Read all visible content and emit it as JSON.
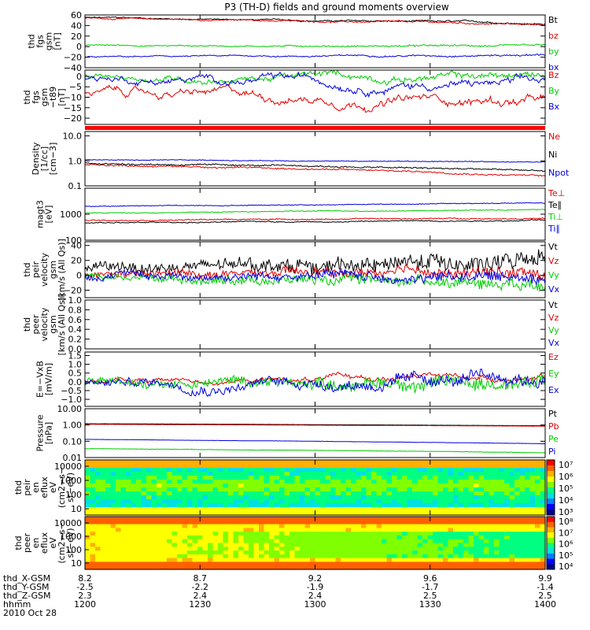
{
  "title": "P3 (TH-D) fields and ground moments overview",
  "chart_data": {
    "type": "line",
    "title": "P3 (TH-D) fields and ground moments overview",
    "x_axis": {
      "label": "hhmm",
      "date": "2010 Oct 28",
      "ticks": [
        "1200",
        "1230",
        "1300",
        "1330",
        "1400"
      ],
      "ephemeris": [
        {
          "name": "thd_X-GSM",
          "values": [
            "8.2",
            "8.7",
            "9.2",
            "9.6",
            "9.9"
          ]
        },
        {
          "name": "thd_Y-GSM",
          "values": [
            "-2.5",
            "-2.2",
            "-1.9",
            "-1.7",
            "-1.4"
          ]
        },
        {
          "name": "thd_Z-GSM",
          "values": [
            "2.3",
            "2.4",
            "2.4",
            "2.5",
            "2.5"
          ]
        }
      ]
    },
    "panels": [
      {
        "id": "fgs-gsm",
        "ylabel": [
          "thd",
          "fgs",
          "gsm",
          "[nT]"
        ],
        "ylim": [
          -40,
          60
        ],
        "yticks": [
          "60",
          "40",
          "20",
          "0",
          "−20",
          "−40"
        ],
        "series": [
          {
            "name": "Bt",
            "color": "#000000",
            "start": 55,
            "end": 44,
            "noise": 0.6,
            "wander": 1.0
          },
          {
            "name": "bz",
            "color": "#e00000",
            "start": 54,
            "end": 42,
            "noise": 0.6,
            "wander": 1.0
          },
          {
            "name": "by",
            "color": "#00cc00",
            "start": 2,
            "end": 1,
            "noise": 0.7,
            "wander": 0.8
          },
          {
            "name": "bx",
            "color": "#0000e0",
            "start": -20,
            "end": -15,
            "noise": 0.6,
            "wander": 1.0
          }
        ]
      },
      {
        "id": "fgs-gsm-sub",
        "ylabel": [
          "thd",
          "fgs",
          "gsm",
          "−t89",
          "[nT]"
        ],
        "ylim": [
          -23,
          3
        ],
        "yticks": [
          "0",
          "−5",
          "−10",
          "−15",
          "−20"
        ],
        "series": [
          {
            "name": "Bz",
            "color": "#e00000",
            "start": -8,
            "end": -12,
            "noise": 0.5,
            "wander": 1.8
          },
          {
            "name": "By",
            "color": "#00cc00",
            "start": -0.5,
            "end": 0,
            "noise": 0.5,
            "wander": 1.3
          },
          {
            "name": "Bx",
            "color": "#0000e0",
            "start": -1,
            "end": -4,
            "noise": 0.5,
            "wander": 1.6
          }
        ]
      },
      {
        "id": "density",
        "ylabel": [
          "Density",
          "[1/cc]",
          "[cm−3]"
        ],
        "log": true,
        "ylim": [
          0.1,
          15
        ],
        "yticks": [
          "10.0",
          "1.0",
          "0.1"
        ],
        "series": [
          {
            "name": "Ne",
            "color": "#e00000",
            "start": 0.7,
            "end": 0.25,
            "noise": 0.06,
            "wander": 0.12
          },
          {
            "name": "Ni",
            "color": "#000000",
            "start": 0.8,
            "end": 0.4,
            "noise": 0.06,
            "wander": 0.1
          },
          {
            "name": "Npot",
            "color": "#0000e0",
            "start": 1.1,
            "end": 0.9,
            "noise": 0.03,
            "wander": 0.05
          }
        ]
      },
      {
        "id": "temperature",
        "ylabel": [
          "magt3",
          "[eV]"
        ],
        "log": true,
        "ylim": [
          100,
          10000
        ],
        "yticks": [
          "1000",
          "100"
        ],
        "series": [
          {
            "name": "Te⊥",
            "color": "#e00000",
            "start": 600,
            "end": 700,
            "noise": 0.04,
            "wander": 0.08
          },
          {
            "name": "Te∥",
            "color": "#000000",
            "start": 450,
            "end": 600,
            "noise": 0.04,
            "wander": 0.1
          },
          {
            "name": "Ti⊥",
            "color": "#00cc00",
            "start": 1100,
            "end": 1500,
            "noise": 0.03,
            "wander": 0.06
          },
          {
            "name": "Ti∥",
            "color": "#0000e0",
            "start": 2000,
            "end": 2700,
            "noise": 0.03,
            "wander": 0.06
          }
        ]
      },
      {
        "id": "peir-velocity",
        "ylabel": [
          "thd",
          "peir",
          "velocity",
          "gsm",
          "[km/s (All Qs)]"
        ],
        "ylim": [
          -30,
          45
        ],
        "yticks": [
          "40",
          "20",
          "0",
          "−20"
        ],
        "series": [
          {
            "name": "Vt",
            "color": "#000000",
            "start": 8,
            "end": 20,
            "noise": 5.5,
            "wander": 3
          },
          {
            "name": "Vz",
            "color": "#e00000",
            "start": 0,
            "end": 3,
            "noise": 3.5,
            "wander": 2.5
          },
          {
            "name": "Vy",
            "color": "#00cc00",
            "start": -2,
            "end": -8,
            "noise": 3.5,
            "wander": 3
          },
          {
            "name": "Vx",
            "color": "#0000e0",
            "start": 0,
            "end": -3,
            "noise": 3.5,
            "wander": 3
          }
        ]
      },
      {
        "id": "peer-velocity",
        "ylabel": [
          "thd",
          "peer",
          "velocity",
          "gsm",
          "[km/s (All Qs)]"
        ],
        "ylim": [
          0,
          1
        ],
        "yticks": [
          "1.0",
          "0.8",
          "0.6",
          "0.4",
          "0.2",
          "0.0"
        ],
        "series": [
          {
            "name": "Vt",
            "color": "#000000"
          },
          {
            "name": "Vz",
            "color": "#e00000"
          },
          {
            "name": "Vy",
            "color": "#00cc00"
          },
          {
            "name": "Vx",
            "color": "#0000e0"
          }
        ]
      },
      {
        "id": "efield",
        "ylabel": [
          "E=−VxB",
          "[mV/m]"
        ],
        "ylim": [
          -1.4,
          1.7
        ],
        "yticks": [
          "1.5",
          "1.0",
          "0.5",
          "0.0",
          "−0.5",
          "−1.0"
        ],
        "series": [
          {
            "name": "Ez",
            "color": "#e00000",
            "start": 0,
            "end": 0.3,
            "noise": 0.05,
            "wander": 0.12
          },
          {
            "name": "Ey",
            "color": "#00cc00",
            "start": 0,
            "end": 0,
            "noise": 0.18,
            "wander": 0.15
          },
          {
            "name": "Ex",
            "color": "#0000e0",
            "start": 0,
            "end": 0,
            "noise": 0.15,
            "wander": 0.2
          }
        ]
      },
      {
        "id": "pressure",
        "ylabel": [
          "Pressure",
          "[nPa]"
        ],
        "log": true,
        "ylim": [
          0.01,
          10
        ],
        "yticks": [
          "10.00",
          "1.00",
          "0.10",
          "0.01"
        ],
        "series": [
          {
            "name": "Pt",
            "color": "#000000",
            "start": 1.2,
            "end": 0.9,
            "noise": 0.01,
            "wander": 0.01
          },
          {
            "name": "Pb",
            "color": "#e00000",
            "start": 1.1,
            "end": 0.85,
            "noise": 0.01,
            "wander": 0.01
          },
          {
            "name": "Pe",
            "color": "#00cc00",
            "start": 0.035,
            "end": 0.02,
            "noise": 0.02,
            "wander": 0.03
          },
          {
            "name": "Pi",
            "color": "#0000e0",
            "start": 0.13,
            "end": 0.07,
            "noise": 0.01,
            "wander": 0.02
          }
        ]
      },
      {
        "id": "peir-spectrogram",
        "type": "heatmap",
        "ylabel": [
          "thd",
          "peir",
          "en",
          "eflux",
          "eV",
          "(cm2−s−",
          "sr−eV)"
        ],
        "yticks": [
          "10000",
          "1000",
          "100",
          "10"
        ],
        "colorbar_ticks": [
          "10⁷",
          "10⁶",
          "10⁵",
          "10⁴",
          "10³"
        ]
      },
      {
        "id": "peer-spectrogram",
        "type": "heatmap",
        "ylabel": [
          "thd",
          "peer",
          "en",
          "eflux",
          "eV",
          "(cm2−s−",
          "sr−eV)"
        ],
        "yticks": [
          "10000",
          "1000",
          "100",
          "10"
        ],
        "colorbar_ticks": [
          "10⁸",
          "10⁷",
          "10⁶",
          "10⁵",
          "10⁴"
        ]
      }
    ]
  }
}
